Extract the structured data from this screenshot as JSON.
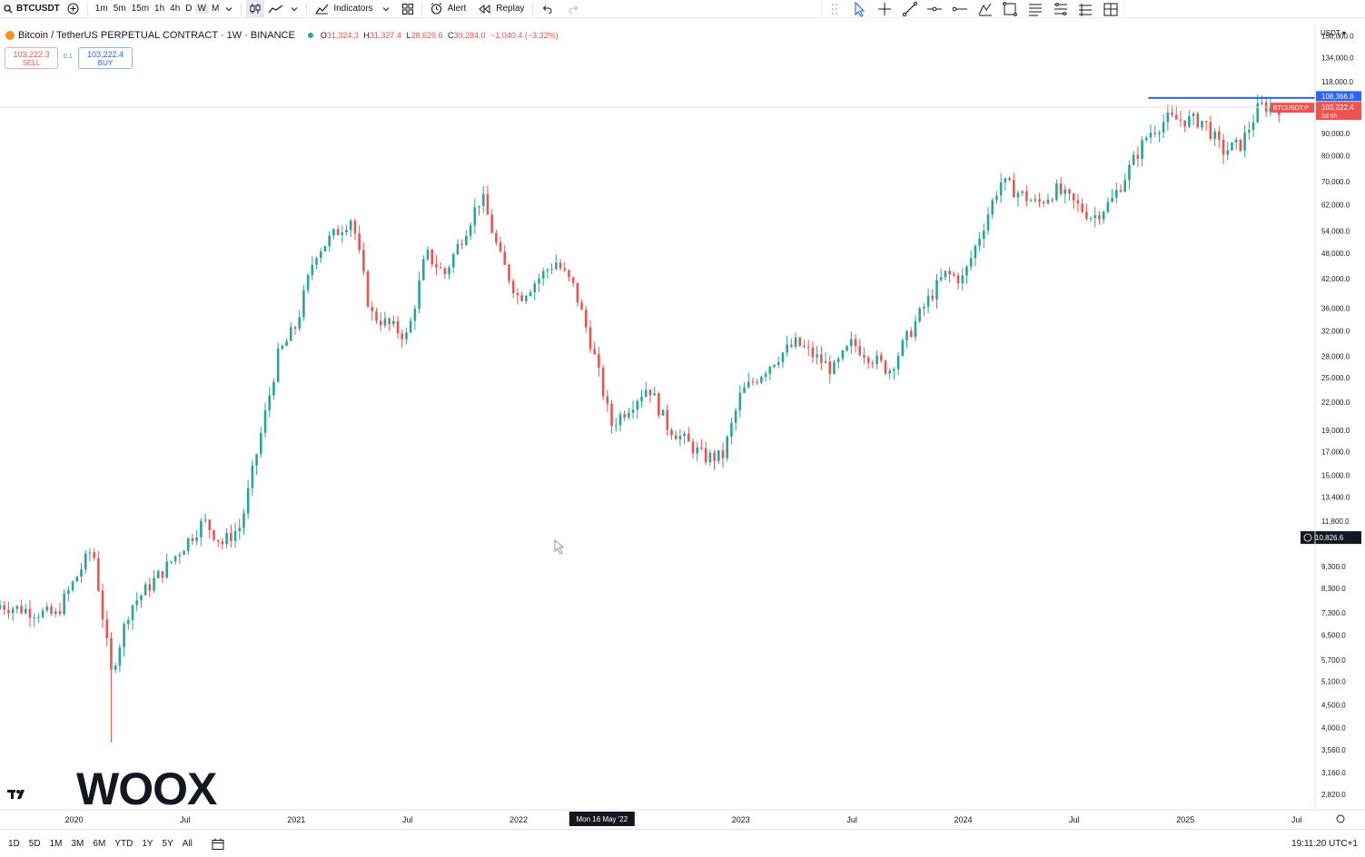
{
  "toolbar": {
    "symbol": "BTCUSDT",
    "intervals": [
      "1m",
      "5m",
      "15m",
      "1h",
      "4h",
      "D",
      "W",
      "M"
    ],
    "active_interval": "W",
    "indicators_label": "Indicators",
    "alert_label": "Alert",
    "replay_label": "Replay"
  },
  "drawing_tools": [
    "drag-handle-icon",
    "cursor-icon",
    "crosshair-icon",
    "trend-line-icon",
    "horizontal-line-icon",
    "horizontal-ray-icon",
    "pen-icon",
    "rectangle-icon",
    "text-lines-icon",
    "fib-levels-icon",
    "long-position-icon",
    "measure-icon"
  ],
  "legend": {
    "title": "Bitcoin / TetherUS PERPETUAL CONTRACT · 1W · BINANCE",
    "open_label": "O",
    "open": "31,324.3",
    "high_label": "H",
    "high": "31,327.4",
    "low_label": "L",
    "low": "28,629.6",
    "close_label": "C",
    "close": "30,284.0",
    "change": "−1,040.4 (−3.32%)"
  },
  "trade": {
    "sell_price": "103,222.3",
    "sell_label": "SELL",
    "spread": "0.1",
    "buy_price": "103,222.4",
    "buy_label": "BUY"
  },
  "price_axis": {
    "currency": "USDT",
    "labels": [
      "150,000.0",
      "134,000.0",
      "118,000.0",
      "90,000.0",
      "80,000.0",
      "70,000.0",
      "62,000.0",
      "54,000.0",
      "48,000.0",
      "42,000.0",
      "36,000.0",
      "32,000.0",
      "28,000.0",
      "25,000.0",
      "22,000.0",
      "19,000.0",
      "17,000.0",
      "15,000.0",
      "13,400.0",
      "11,800.0",
      "9,300.0",
      "8,300.0",
      "7,300.0",
      "6,500.0",
      "5,700.0",
      "5,100.0",
      "4,500.0",
      "4,000.0",
      "3,560.0",
      "3,160.0",
      "2,820.0"
    ],
    "line_level_label": "108,366.8",
    "last_price_label": "103,222.4",
    "countdown": "2d 6h",
    "symbol_badge": "BTCUSDT.P",
    "crosshair_price": "10,826.6"
  },
  "time_axis": {
    "labels": [
      "2020",
      "Jul",
      "2021",
      "Jul",
      "2022",
      "2023",
      "Jul",
      "2024",
      "Jul",
      "2025",
      "Jul"
    ],
    "crosshair_date": "Mon 16 May '22"
  },
  "chart_data": {
    "type": "candlestick",
    "symbol": "BTCUSDT.P",
    "interval": "1W",
    "y_scale": "log",
    "ylim": [
      2600,
      160000
    ],
    "x_range": [
      "2019-09",
      "2025-08"
    ],
    "up_color": "#26a69a",
    "down_color": "#ef5350",
    "grid": false,
    "horizontal_line": {
      "price": 108366.8,
      "from": "2024-11",
      "color": "#2962ff"
    },
    "last_price": 103222.4,
    "crosshair": {
      "date": "Mon 16 May '22",
      "price": 10826.6
    },
    "path": [
      [
        "2019-09",
        7600
      ],
      [
        "2019-12",
        7200
      ],
      [
        "2020-02",
        10300
      ],
      [
        "2020-03",
        5300
      ],
      [
        "2020-04",
        7500
      ],
      [
        "2020-06",
        9300
      ],
      [
        "2020-08",
        11800
      ],
      [
        "2020-09",
        10500
      ],
      [
        "2020-10",
        11500
      ],
      [
        "2020-12",
        28000
      ],
      [
        "2021-01",
        33000
      ],
      [
        "2021-02",
        48000
      ],
      [
        "2021-04",
        58000
      ],
      [
        "2021-05",
        35000
      ],
      [
        "2021-07",
        31000
      ],
      [
        "2021-08",
        48000
      ],
      [
        "2021-09",
        43000
      ],
      [
        "2021-11",
        65000
      ],
      [
        "2021-12",
        47000
      ],
      [
        "2022-01",
        38000
      ],
      [
        "2022-03",
        46000
      ],
      [
        "2022-04",
        40000
      ],
      [
        "2022-05",
        29000
      ],
      [
        "2022-06",
        19500
      ],
      [
        "2022-08",
        24000
      ],
      [
        "2022-09",
        19500
      ],
      [
        "2022-11",
        16500
      ],
      [
        "2022-12",
        16500
      ],
      [
        "2023-01",
        23000
      ],
      [
        "2023-03",
        28000
      ],
      [
        "2023-04",
        30000
      ],
      [
        "2023-06",
        26000
      ],
      [
        "2023-07",
        30000
      ],
      [
        "2023-09",
        26000
      ],
      [
        "2023-11",
        37000
      ],
      [
        "2023-12",
        43000
      ],
      [
        "2024-01",
        42000
      ],
      [
        "2024-03",
        70000
      ],
      [
        "2024-05",
        62000
      ],
      [
        "2024-06",
        67000
      ],
      [
        "2024-08",
        58000
      ],
      [
        "2024-09",
        63000
      ],
      [
        "2024-11",
        90000
      ],
      [
        "2024-12",
        97000
      ],
      [
        "2025-02",
        96000
      ],
      [
        "2025-03",
        82000
      ],
      [
        "2025-04",
        85000
      ],
      [
        "2025-05",
        104000
      ],
      [
        "2025-06",
        103200
      ]
    ]
  },
  "range_buttons": [
    "1D",
    "5D",
    "1M",
    "3M",
    "6M",
    "YTD",
    "1Y",
    "5Y",
    "All"
  ],
  "clock": "19:11:20 UTC+1",
  "watermark": "WOOX"
}
